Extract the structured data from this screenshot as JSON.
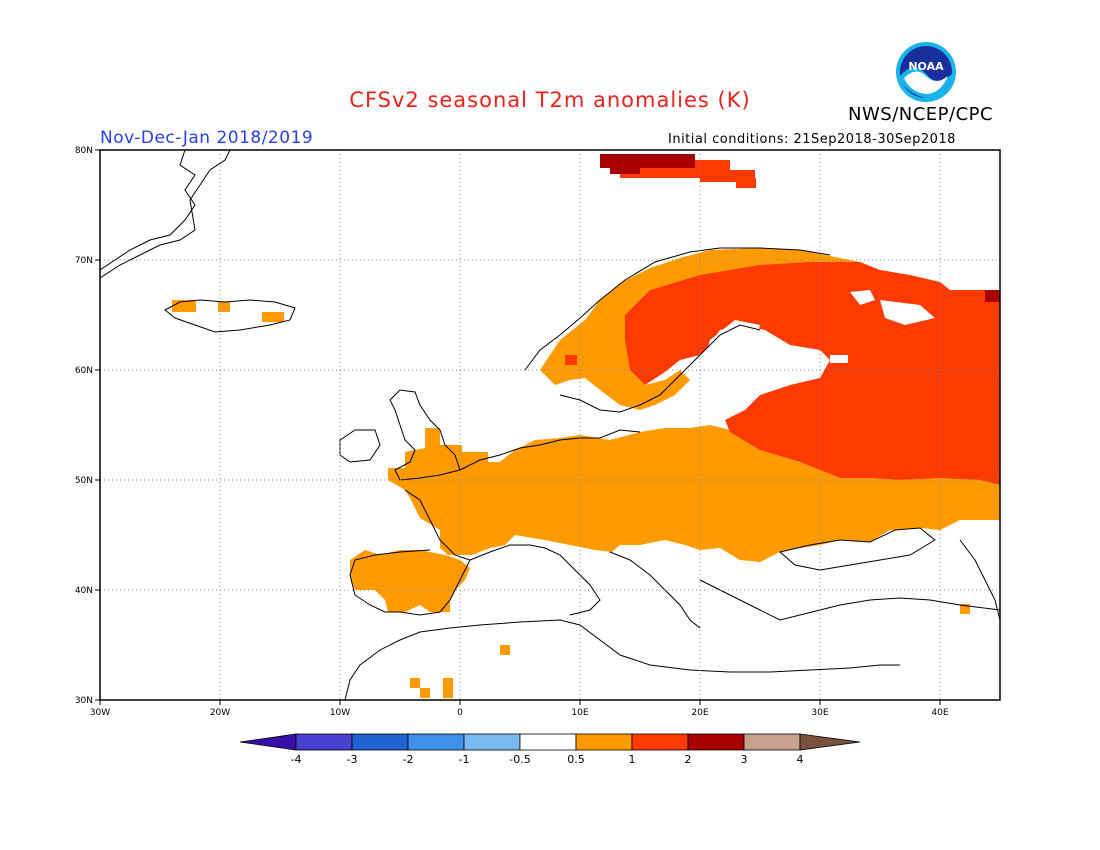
{
  "header": {
    "title": "CFSv2 seasonal T2m anomalies (K)",
    "organization": "NWS/NCEP/CPC",
    "period": "Nov-Dec-Jan 2018/2019",
    "initial_conditions": "Initial conditions: 21Sep2018-30Sep2018",
    "logo_text": "NOAA"
  },
  "axes": {
    "lon_labels": [
      "30W",
      "20W",
      "10W",
      "0",
      "10E",
      "20E",
      "30E",
      "40E"
    ],
    "lat_labels": [
      "80N",
      "70N",
      "60N",
      "50N",
      "40N",
      "30N"
    ]
  },
  "colorbar": {
    "labels": [
      "-4",
      "-3",
      "-2",
      "-1",
      "-0.5",
      "0.5",
      "1",
      "2",
      "3",
      "4"
    ],
    "colors": [
      "#3a0fa8",
      "#4a40d0",
      "#1f62d0",
      "#3e90e8",
      "#7ab8f0",
      "#ffffff",
      "#ff9b00",
      "#ff3a00",
      "#a80000",
      "#c8a090",
      "#7a5040"
    ]
  },
  "anomaly_colors": {
    "0.5-1": "#ff9b00",
    "1-2": "#ff3a00",
    "2-3": "#a80000"
  }
}
